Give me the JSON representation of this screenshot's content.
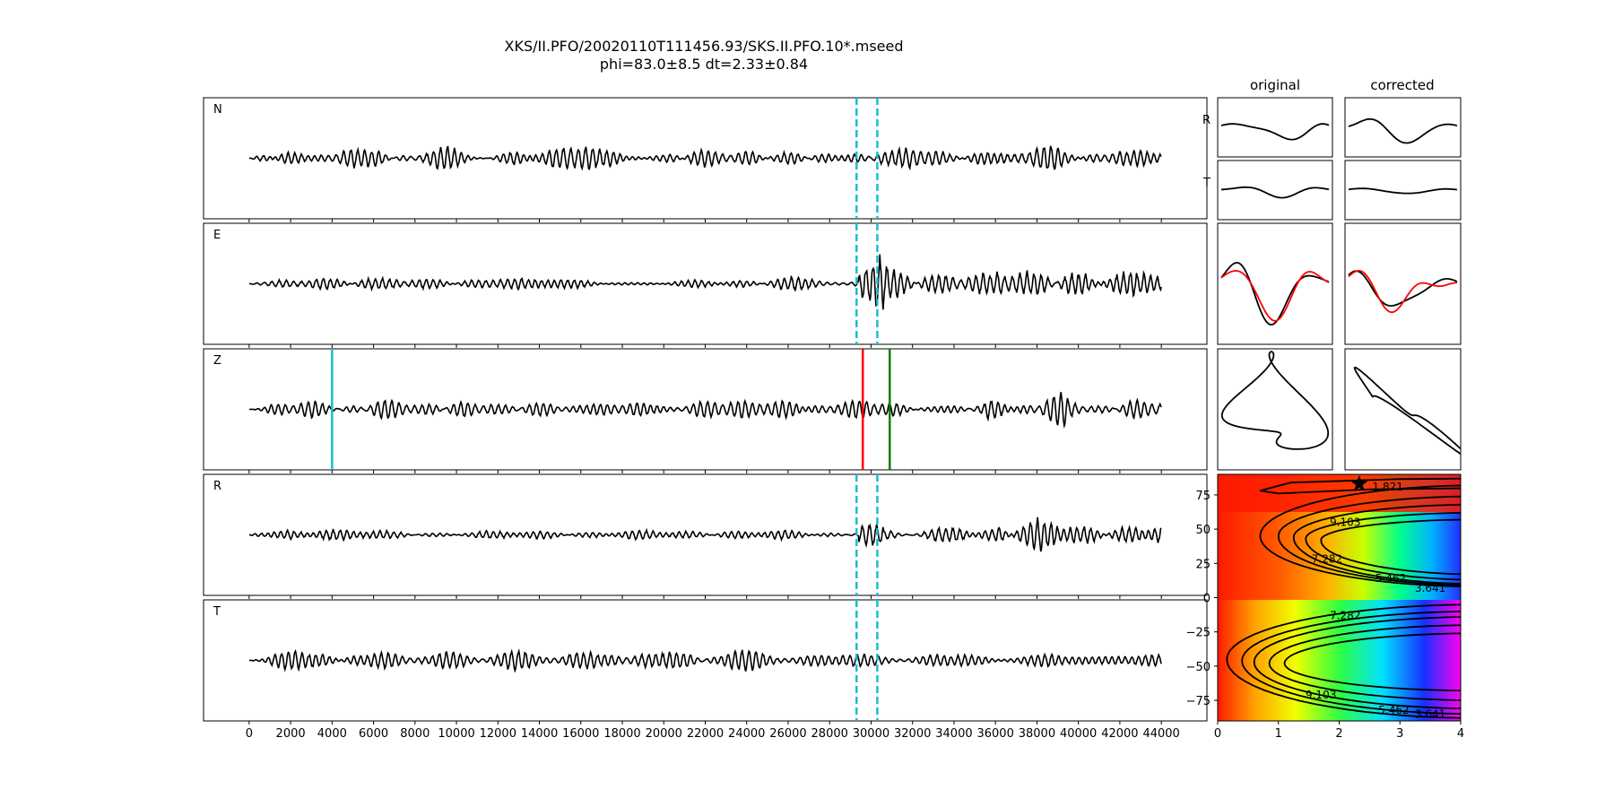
{
  "figure": {
    "title_line1": "XKS/II.PFO/20020110T111456.93/SKS.II.PFO.10*.mseed",
    "title_line2": "phi=83.0±8.5 dt=2.33±0.84"
  },
  "chart_data": [
    {
      "type": "line",
      "name": "seismogram-traces",
      "panels": [
        "N",
        "E",
        "Z",
        "R",
        "T"
      ],
      "x_ticks": [
        0,
        2000,
        4000,
        6000,
        8000,
        10000,
        12000,
        14000,
        16000,
        18000,
        20000,
        22000,
        24000,
        26000,
        28000,
        30000,
        32000,
        34000,
        36000,
        38000,
        40000,
        42000,
        44000
      ],
      "xlim": [
        -2200,
        46200
      ],
      "trace_x_range": [
        0,
        44000
      ],
      "window_lines": {
        "start": 29300,
        "end": 30300,
        "color": "#17becf",
        "style": "dashed",
        "panels": [
          "N",
          "E",
          "R",
          "T"
        ]
      },
      "phase_lines": [
        {
          "x": 4000,
          "color": "#17becf",
          "panel": "Z"
        },
        {
          "x": 29600,
          "color": "#ff0000",
          "panel": "Z"
        },
        {
          "x": 30900,
          "color": "#008000",
          "panel": "Z"
        }
      ]
    },
    {
      "type": "line",
      "name": "particle-motion",
      "column_titles": [
        "original",
        "corrected"
      ],
      "row_labels": [
        "R",
        "T"
      ],
      "series_colors": [
        "#000000",
        "#ff0000"
      ]
    },
    {
      "type": "heatmap",
      "name": "energy-grid",
      "xlim": [
        0,
        4
      ],
      "ylim": [
        -90,
        90
      ],
      "x_ticks": [
        0,
        1,
        2,
        3,
        4
      ],
      "y_ticks": [
        -75,
        -50,
        -25,
        0,
        25,
        50,
        75
      ],
      "contour_levels": [
        1.821,
        3.641,
        5.462,
        7.282,
        9.103
      ],
      "contour_labels": [
        {
          "text": "1.821",
          "x": 2.8,
          "y": 81
        },
        {
          "text": "9.103",
          "x": 2.1,
          "y": 55
        },
        {
          "text": "7.282",
          "x": 1.8,
          "y": 28
        },
        {
          "text": "5.462",
          "x": 2.85,
          "y": 14
        },
        {
          "text": "3.641",
          "x": 3.5,
          "y": 7
        },
        {
          "text": "7.282",
          "x": 2.1,
          "y": -13
        },
        {
          "text": "9.103",
          "x": 1.7,
          "y": -71
        },
        {
          "text": "5.462",
          "x": 2.9,
          "y": -82
        },
        {
          "text": "3.641",
          "x": 3.5,
          "y": -85
        }
      ],
      "best_fit": {
        "dt": 2.33,
        "phi": 83.0,
        "marker": "star"
      },
      "colormap": "gist_rainbow"
    }
  ]
}
